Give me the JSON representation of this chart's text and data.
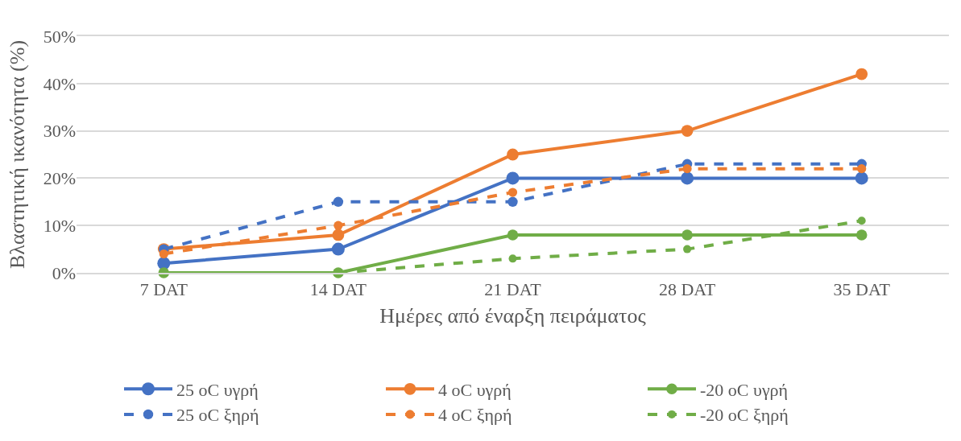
{
  "chart_data": {
    "type": "line",
    "xlabel": "Ημέρες από έναρξη πειράματος",
    "ylabel": "Βλαστητική ικανότητα (%)",
    "categories": [
      "7 DAT",
      "14 DAT",
      "21 DAT",
      "28 DAT",
      "35 DAT"
    ],
    "series": [
      {
        "name": "25 oC υγρή",
        "color": "#4472c4",
        "line_style": "solid",
        "values": [
          2,
          5,
          20,
          20,
          20
        ]
      },
      {
        "name": "4 oC υγρή",
        "color": "#ed7d31",
        "line_style": "solid",
        "values": [
          5,
          8,
          25,
          30,
          42
        ]
      },
      {
        "name": "-20 oC υγρή",
        "color": "#70ad47",
        "line_style": "solid",
        "values": [
          0,
          0,
          8,
          8,
          8
        ]
      },
      {
        "name": "25 oC ξηρή",
        "color": "#4472c4",
        "line_style": "dashed",
        "values": [
          5,
          15,
          15,
          23,
          23
        ]
      },
      {
        "name": "4 oC ξηρή",
        "color": "#ed7d31",
        "line_style": "dashed",
        "values": [
          4,
          10,
          17,
          22,
          22
        ]
      },
      {
        "name": "-20 oC ξηρή",
        "color": "#70ad47",
        "line_style": "dashed",
        "values": [
          0,
          0,
          3,
          5,
          11
        ]
      }
    ],
    "ylim": [
      0,
      50
    ],
    "yticks": [
      {
        "value": 0,
        "label": "0%"
      },
      {
        "value": 10,
        "label": "10%"
      },
      {
        "value": 20,
        "label": "20%"
      },
      {
        "value": 30,
        "label": "30%"
      },
      {
        "value": 40,
        "label": "40%"
      },
      {
        "value": 50,
        "label": "50%"
      }
    ],
    "grid": "y",
    "legend": "bottom",
    "marker": "circle"
  }
}
